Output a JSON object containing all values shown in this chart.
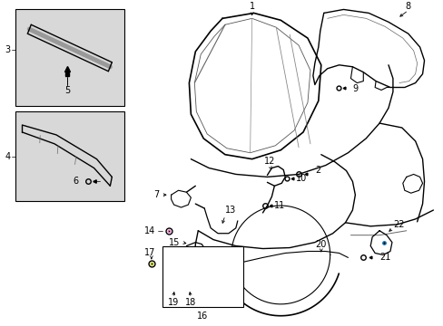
{
  "bg_color": "#ffffff",
  "line_color": "#000000",
  "fig_width": 4.89,
  "fig_height": 3.6,
  "dpi": 100,
  "font_size": 7.0,
  "box1_gray": "#d8d8d8",
  "box2_gray": "#d8d8d8"
}
